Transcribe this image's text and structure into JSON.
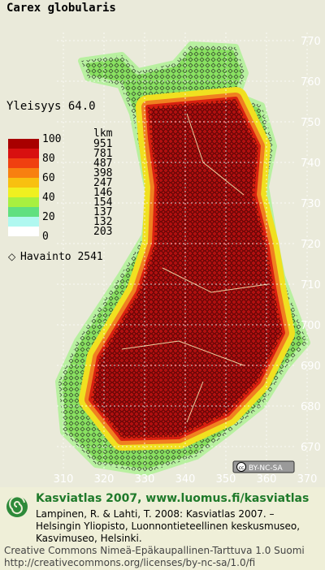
{
  "map": {
    "title": "Carex globularis",
    "frequency": "Yleisyys  64.0",
    "legend": {
      "count_header": "lkm",
      "level_labels": [
        "100",
        "80",
        "60",
        "40",
        "20",
        "0"
      ],
      "counts": [
        "951",
        "781",
        "487",
        "398",
        "247",
        "146",
        "154",
        "137",
        "132",
        "203"
      ],
      "colors": [
        "#a80000",
        "#d81010",
        "#f04010",
        "#f88010",
        "#f8c010",
        "#f0f020",
        "#a8f040",
        "#60e080",
        "#b0f8f0",
        "#ffffff"
      ]
    },
    "observations": "Havainto 2541",
    "y_axis_labels": [
      "770",
      "760",
      "750",
      "740",
      "730",
      "720",
      "710",
      "700",
      "690",
      "680",
      "670"
    ],
    "x_axis_labels": [
      "310",
      "320",
      "330",
      "340",
      "350",
      "360",
      "370"
    ],
    "license_badge": "BY-NC-SA"
  },
  "footer": {
    "heading": "Kasviatlas 2007, www.luomus.fi/kasviatlas",
    "citation": [
      "Lampinen, R. & Lahti, T. 2008: Kasviatlas 2007. –",
      "Helsingin Yliopisto, Luonnontieteellinen keskusmuseo,",
      "Kasvimuseo, Helsinki."
    ],
    "license": [
      "Creative Commons Nimeä-Epäkaupallinen-Tarttuva 1.0 Suomi",
      "http://creativecommons.org/licenses/by-nc-sa/1.0/fi"
    ]
  }
}
